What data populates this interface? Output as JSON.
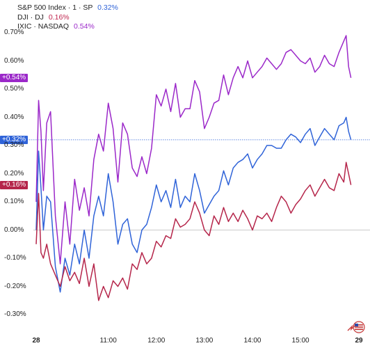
{
  "legend": [
    {
      "label": "S&P 500 Index · 1 · SP",
      "value": "0.32%",
      "color": "#2f63d8"
    },
    {
      "label": "DJI · DJ",
      "value": "0.16%",
      "color": "#c0264f"
    },
    {
      "label": "IXIC · NASDAQ",
      "value": "0.54%",
      "color": "#9b28c9"
    }
  ],
  "badges": [
    {
      "text": "+0.54%",
      "color": "#9b28c9",
      "value": 0.54
    },
    {
      "text": "+0.32%",
      "color": "#2f63d8",
      "value": 0.32
    },
    {
      "text": "+0.16%",
      "color": "#b5254a",
      "value": 0.16
    }
  ],
  "chart_data": {
    "type": "line",
    "y_ticks": [
      0.7,
      0.6,
      0.5,
      0.4,
      0.3,
      0.2,
      0.1,
      0.0,
      -0.1,
      -0.2,
      -0.3
    ],
    "y_tick_labels": [
      "0.70%",
      "0.60%",
      "0.50%",
      "0.40%",
      "0.30%",
      "0.20%",
      "0.10%",
      "0.00%",
      "-0.10%",
      "-0.20%",
      "-0.30%"
    ],
    "ylim": [
      -0.33,
      0.72
    ],
    "x_ticks": [
      {
        "label": "28",
        "time": 9.5,
        "bold": true
      },
      {
        "label": "11:00",
        "time": 11.0
      },
      {
        "label": "12:00",
        "time": 12.0
      },
      {
        "label": "13:00",
        "time": 13.0
      },
      {
        "label": "14:00",
        "time": 14.0
      },
      {
        "label": "15:00",
        "time": 15.0
      },
      {
        "label": "29",
        "time": 16.3,
        "bold": true
      }
    ],
    "xlim": [
      9.5,
      16.3
    ],
    "zero_line": true,
    "series": [
      {
        "name": "IXIC · NASDAQ",
        "color": "#9b28c9",
        "x": [
          9.5,
          9.55,
          9.6,
          9.65,
          9.72,
          9.8,
          9.9,
          10.0,
          10.1,
          10.2,
          10.3,
          10.4,
          10.5,
          10.6,
          10.7,
          10.8,
          10.9,
          11.0,
          11.1,
          11.2,
          11.3,
          11.4,
          11.5,
          11.6,
          11.7,
          11.8,
          11.9,
          12.0,
          12.1,
          12.2,
          12.3,
          12.4,
          12.5,
          12.6,
          12.7,
          12.8,
          12.9,
          13.0,
          13.1,
          13.2,
          13.3,
          13.4,
          13.5,
          13.6,
          13.7,
          13.8,
          13.9,
          14.0,
          14.1,
          14.2,
          14.3,
          14.4,
          14.5,
          14.6,
          14.7,
          14.8,
          14.9,
          15.0,
          15.1,
          15.2,
          15.3,
          15.4,
          15.5,
          15.6,
          15.7,
          15.8,
          15.9,
          15.95,
          16.0,
          16.05
        ],
        "y": [
          0.1,
          0.46,
          0.35,
          0.14,
          0.38,
          0.42,
          0.05,
          -0.12,
          0.1,
          -0.05,
          0.18,
          0.07,
          0.15,
          0.05,
          0.25,
          0.34,
          0.28,
          0.45,
          0.36,
          0.17,
          0.38,
          0.34,
          0.22,
          0.19,
          0.26,
          0.2,
          0.29,
          0.48,
          0.44,
          0.5,
          0.42,
          0.52,
          0.4,
          0.43,
          0.43,
          0.53,
          0.49,
          0.36,
          0.4,
          0.45,
          0.46,
          0.55,
          0.48,
          0.54,
          0.58,
          0.54,
          0.6,
          0.54,
          0.56,
          0.58,
          0.61,
          0.59,
          0.57,
          0.59,
          0.63,
          0.64,
          0.62,
          0.6,
          0.59,
          0.61,
          0.56,
          0.58,
          0.62,
          0.59,
          0.58,
          0.63,
          0.67,
          0.69,
          0.58,
          0.54
        ]
      },
      {
        "name": "S&P 500 Index · 1 · SP",
        "color": "#2f63d8",
        "x": [
          9.5,
          9.55,
          9.6,
          9.65,
          9.72,
          9.8,
          9.9,
          10.0,
          10.1,
          10.2,
          10.3,
          10.4,
          10.5,
          10.6,
          10.7,
          10.8,
          10.9,
          11.0,
          11.1,
          11.2,
          11.3,
          11.4,
          11.5,
          11.6,
          11.7,
          11.8,
          11.9,
          12.0,
          12.1,
          12.2,
          12.3,
          12.4,
          12.5,
          12.6,
          12.7,
          12.8,
          12.9,
          13.0,
          13.1,
          13.2,
          13.3,
          13.4,
          13.5,
          13.6,
          13.7,
          13.8,
          13.9,
          14.0,
          14.1,
          14.2,
          14.3,
          14.4,
          14.5,
          14.6,
          14.7,
          14.8,
          14.9,
          15.0,
          15.1,
          15.2,
          15.3,
          15.4,
          15.5,
          15.6,
          15.7,
          15.8,
          15.9,
          15.95,
          16.0,
          16.05
        ],
        "y": [
          0.0,
          0.28,
          0.15,
          0.0,
          0.12,
          0.1,
          -0.13,
          -0.22,
          -0.1,
          -0.16,
          -0.05,
          -0.12,
          0.0,
          -0.1,
          0.05,
          0.12,
          0.05,
          0.2,
          0.1,
          -0.05,
          0.02,
          0.04,
          -0.05,
          -0.08,
          0.0,
          0.02,
          0.08,
          0.16,
          0.1,
          0.14,
          0.08,
          0.18,
          0.08,
          0.12,
          0.1,
          0.2,
          0.14,
          0.06,
          0.09,
          0.12,
          0.14,
          0.21,
          0.16,
          0.22,
          0.24,
          0.25,
          0.27,
          0.22,
          0.25,
          0.27,
          0.3,
          0.3,
          0.29,
          0.29,
          0.32,
          0.34,
          0.33,
          0.31,
          0.34,
          0.36,
          0.3,
          0.33,
          0.36,
          0.34,
          0.32,
          0.37,
          0.38,
          0.4,
          0.35,
          0.32
        ]
      },
      {
        "name": "DJI · DJ",
        "color": "#b5254a",
        "x": [
          9.5,
          9.55,
          9.6,
          9.65,
          9.72,
          9.8,
          9.9,
          10.0,
          10.1,
          10.2,
          10.3,
          10.4,
          10.5,
          10.6,
          10.7,
          10.8,
          10.9,
          11.0,
          11.1,
          11.2,
          11.3,
          11.4,
          11.5,
          11.6,
          11.7,
          11.8,
          11.9,
          12.0,
          12.1,
          12.2,
          12.3,
          12.4,
          12.5,
          12.6,
          12.7,
          12.8,
          12.9,
          13.0,
          13.1,
          13.2,
          13.3,
          13.4,
          13.5,
          13.6,
          13.7,
          13.8,
          13.9,
          14.0,
          14.1,
          14.2,
          14.3,
          14.4,
          14.5,
          14.6,
          14.7,
          14.8,
          14.9,
          15.0,
          15.1,
          15.2,
          15.3,
          15.4,
          15.5,
          15.6,
          15.7,
          15.8,
          15.9,
          15.95,
          16.0,
          16.05
        ],
        "y": [
          -0.05,
          0.13,
          -0.08,
          -0.1,
          -0.05,
          -0.12,
          -0.16,
          -0.2,
          -0.13,
          -0.18,
          -0.15,
          -0.19,
          -0.1,
          -0.2,
          -0.12,
          -0.25,
          -0.2,
          -0.24,
          -0.18,
          -0.2,
          -0.17,
          -0.21,
          -0.12,
          -0.14,
          -0.08,
          -0.12,
          -0.1,
          -0.04,
          -0.06,
          -0.02,
          -0.03,
          0.04,
          0.01,
          0.02,
          0.04,
          0.1,
          0.06,
          0.0,
          -0.02,
          0.05,
          0.02,
          0.08,
          0.03,
          0.06,
          0.03,
          0.07,
          0.04,
          0.0,
          0.05,
          0.04,
          0.06,
          0.03,
          0.08,
          0.12,
          0.1,
          0.06,
          0.09,
          0.11,
          0.14,
          0.16,
          0.12,
          0.15,
          0.18,
          0.15,
          0.14,
          0.2,
          0.17,
          0.24,
          0.2,
          0.16
        ]
      }
    ]
  },
  "icons": {
    "logo": "us-flag-arrow-icon"
  }
}
